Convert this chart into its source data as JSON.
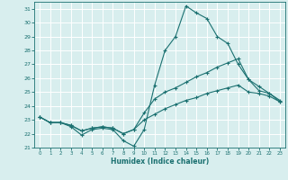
{
  "xlabel": "Humidex (Indice chaleur)",
  "ylabel": "",
  "xlim": [
    -0.5,
    23.5
  ],
  "ylim": [
    21,
    31.5
  ],
  "yticks": [
    21,
    22,
    23,
    24,
    25,
    26,
    27,
    28,
    29,
    30,
    31
  ],
  "xticks": [
    0,
    1,
    2,
    3,
    4,
    5,
    6,
    7,
    8,
    9,
    10,
    11,
    12,
    13,
    14,
    15,
    16,
    17,
    18,
    19,
    20,
    21,
    22,
    23
  ],
  "bg_color": "#d8eeee",
  "grid_color": "#ffffff",
  "line_color": "#1a7070",
  "line1_x": [
    0,
    1,
    2,
    3,
    4,
    5,
    6,
    7,
    8,
    9,
    10,
    11,
    12,
    13,
    14,
    15,
    16,
    17,
    18,
    19,
    20,
    21,
    22,
    23
  ],
  "line1_y": [
    23.2,
    22.8,
    22.8,
    22.5,
    21.9,
    22.3,
    22.4,
    22.3,
    21.5,
    21.1,
    22.3,
    25.5,
    28.0,
    29.0,
    31.2,
    30.7,
    30.3,
    29.0,
    28.5,
    27.0,
    25.9,
    25.4,
    24.9,
    24.4
  ],
  "line2_x": [
    0,
    1,
    2,
    3,
    4,
    5,
    6,
    7,
    8,
    9,
    10,
    11,
    12,
    13,
    14,
    15,
    16,
    17,
    18,
    19,
    20,
    21,
    22,
    23
  ],
  "line2_y": [
    23.2,
    22.8,
    22.8,
    22.6,
    22.2,
    22.4,
    22.5,
    22.4,
    22.0,
    22.3,
    23.5,
    24.5,
    25.0,
    25.3,
    25.7,
    26.1,
    26.4,
    26.8,
    27.1,
    27.4,
    25.9,
    25.1,
    24.9,
    24.3
  ],
  "line3_x": [
    0,
    1,
    2,
    3,
    4,
    5,
    6,
    7,
    8,
    9,
    10,
    11,
    12,
    13,
    14,
    15,
    16,
    17,
    18,
    19,
    20,
    21,
    22,
    23
  ],
  "line3_y": [
    23.2,
    22.8,
    22.8,
    22.6,
    22.2,
    22.4,
    22.5,
    22.4,
    22.0,
    22.3,
    23.0,
    23.4,
    23.8,
    24.1,
    24.4,
    24.6,
    24.9,
    25.1,
    25.3,
    25.5,
    25.0,
    24.9,
    24.7,
    24.3
  ]
}
